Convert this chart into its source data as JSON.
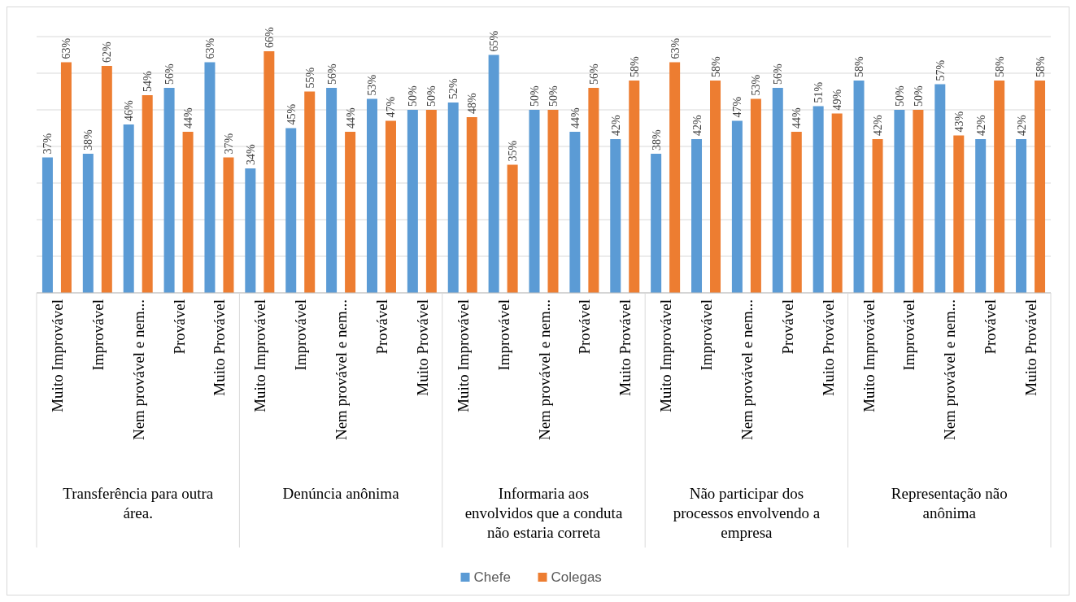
{
  "chart_data": {
    "type": "bar",
    "categories": [
      "Muito Improvável",
      "Improvável",
      "Nem provável e nem...",
      "Provável",
      "Muito Provável",
      "Muito Improvável",
      "Improvável",
      "Nem provável e nem...",
      "Provável",
      "Muito Provável",
      "Muito Improvável",
      "Improvável",
      "Nem provável e nem...",
      "Provável",
      "Muito Provável",
      "Muito Improvável",
      "Improvável",
      "Nem provável e nem...",
      "Provável",
      "Muito Provável",
      "Muito Improvável",
      "Improvável",
      "Nem provável e nem...",
      "Provável",
      "Muito Provável"
    ],
    "series": [
      {
        "name": "Chefe",
        "color": "#5b9bd5",
        "values": [
          37,
          38,
          46,
          56,
          63,
          34,
          45,
          56,
          53,
          50,
          52,
          65,
          50,
          44,
          42,
          38,
          42,
          47,
          56,
          51,
          58,
          50,
          57,
          42,
          42
        ],
        "value_labels": [
          "37%",
          "38%",
          "46%",
          "56%",
          "63%",
          "34%",
          "45%",
          "56%",
          "53%",
          "50%",
          "52%",
          "65%",
          "50%",
          "44%",
          "42%",
          "38%",
          "42%",
          "47%",
          "56%",
          "51%",
          "58%",
          "50%",
          "57%",
          "42%",
          "42%"
        ]
      },
      {
        "name": "Colegas",
        "color": "#ed7d31",
        "values": [
          63,
          62,
          54,
          44,
          37,
          66,
          55,
          44,
          47,
          50,
          48,
          35,
          50,
          56,
          58,
          63,
          58,
          53,
          44,
          49,
          42,
          50,
          43,
          58,
          58
        ],
        "value_labels": [
          "63%",
          "62%",
          "54%",
          "44%",
          "37%",
          "66%",
          "55%",
          "44%",
          "47%",
          "50%",
          "48%",
          "35%",
          "50%",
          "56%",
          "58%",
          "63%",
          "58%",
          "53%",
          "44%",
          "49%",
          "42%",
          "50%",
          "43%",
          "58%",
          "58%"
        ]
      }
    ],
    "ylim": [
      0,
      70
    ],
    "yticks": [
      {
        "value": 0,
        "label": null
      },
      {
        "value": 10,
        "label": null
      },
      {
        "value": 20,
        "label": null
      },
      {
        "value": 30,
        "label": null
      },
      {
        "value": 40,
        "label": null
      },
      {
        "value": 50,
        "label": null
      },
      {
        "value": 60,
        "label": null
      },
      {
        "value": 70,
        "label": null
      }
    ],
    "tick_labels": "x",
    "grid": "y",
    "legend": "bottom",
    "annotations": [
      "Transferência para outra área.",
      "Denúncia anônima",
      "Informaria aos envolvidos que a conduta não estaria correta",
      "Não participar dos processos envolvendo a empresa",
      "Representação não anônima"
    ]
  }
}
